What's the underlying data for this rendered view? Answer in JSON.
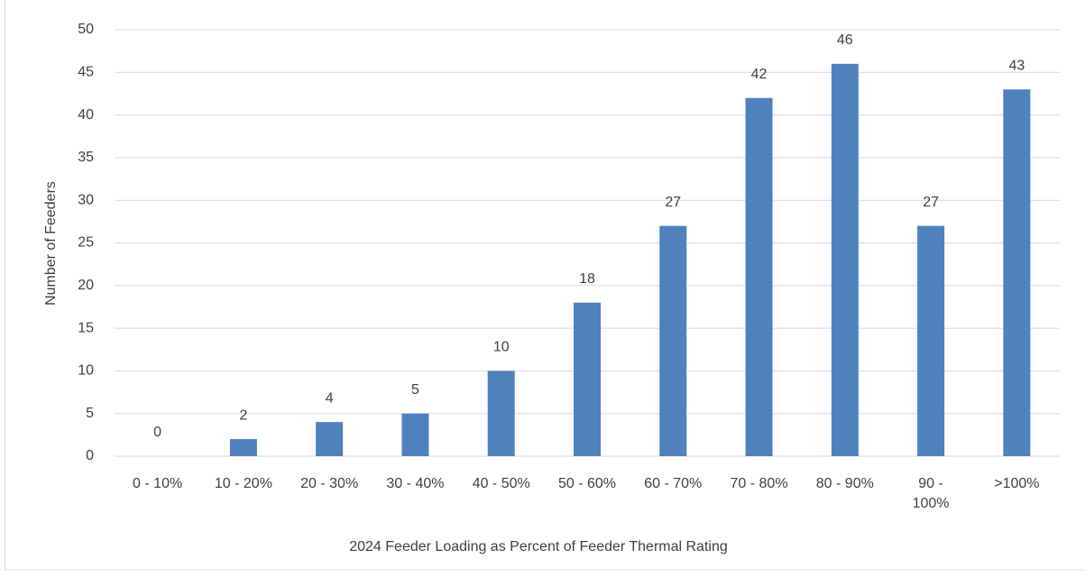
{
  "chart_data": {
    "type": "bar",
    "x_label": "2024 Feeder Loading as Percent of Feeder Thermal Rating",
    "y_label": "Number of Feeders",
    "categories": [
      "0 - 10%",
      "10 - 20%",
      "20 - 30%",
      "30 - 40%",
      "40 - 50%",
      "50 - 60%",
      "60 - 70%",
      "70 - 80%",
      "80 - 90%",
      "90 - 100%",
      ">100%"
    ],
    "values": [
      0,
      2,
      4,
      5,
      10,
      18,
      27,
      42,
      46,
      27,
      43
    ],
    "color": "#4f81bd",
    "ylim": [
      0,
      50
    ],
    "yticks": [
      0,
      5,
      10,
      15,
      20,
      25,
      30,
      35,
      40,
      45,
      50
    ],
    "grid": true
  }
}
